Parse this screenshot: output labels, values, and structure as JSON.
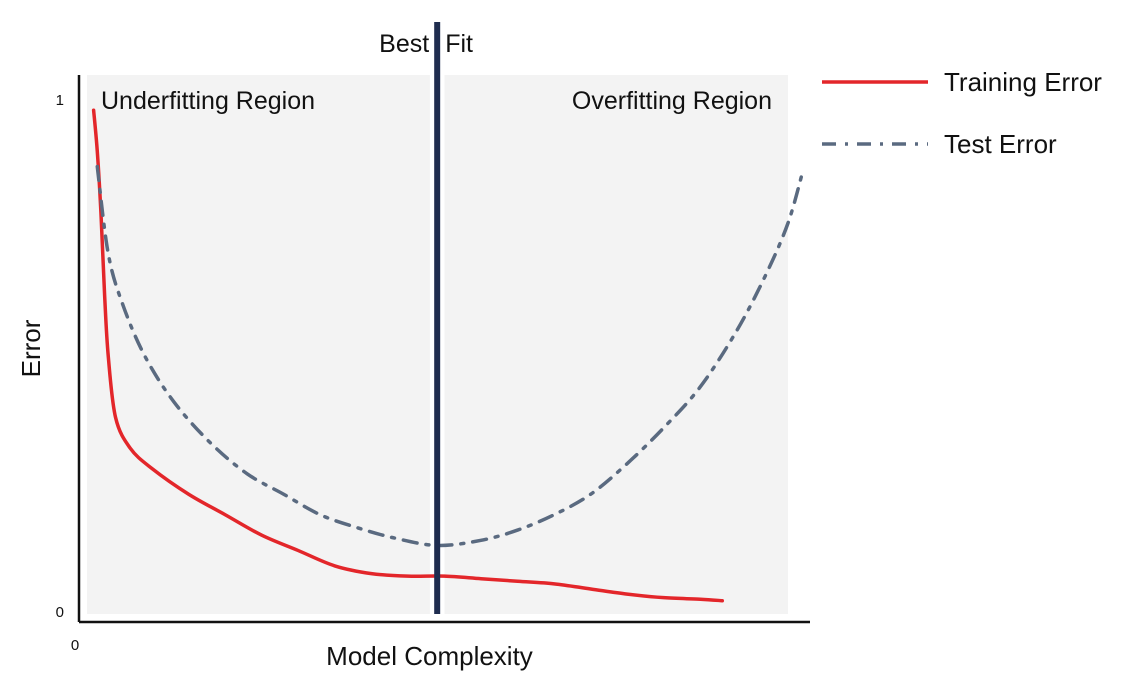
{
  "chart_data": {
    "type": "line",
    "xlabel": "Model Complexity",
    "ylabel": "Error",
    "xlim": [
      0,
      1
    ],
    "ylim": [
      0,
      1
    ],
    "x_ticks": [
      {
        "value": 0,
        "label": "0"
      }
    ],
    "y_ticks": [
      {
        "value": 0,
        "label": "0"
      },
      {
        "value": 1,
        "label": "1"
      }
    ],
    "grid": false,
    "legend_position": "top-right",
    "regions": [
      {
        "label": "Underfitting Region",
        "x_start": 0.0,
        "x_end": 0.48,
        "color": "#f3f3f3"
      },
      {
        "label": "Overfitting Region",
        "x_start": 0.5,
        "x_end": 1.0,
        "color": "#f3f3f3"
      }
    ],
    "vline": {
      "x": 0.49,
      "label_left": "Best",
      "label_right": "Fit",
      "color": "#1f2d4f"
    },
    "series": [
      {
        "name": "Training Error",
        "color": "#e3262a",
        "dash": "solid",
        "x": [
          0.02,
          0.025,
          0.03,
          0.035,
          0.04,
          0.05,
          0.07,
          0.1,
          0.15,
          0.2,
          0.25,
          0.3,
          0.35,
          0.4,
          0.45,
          0.5,
          0.55,
          0.6,
          0.65,
          0.7,
          0.75,
          0.8,
          0.85,
          0.88
        ],
        "y": [
          0.98,
          0.9,
          0.78,
          0.62,
          0.5,
          0.38,
          0.32,
          0.28,
          0.23,
          0.19,
          0.15,
          0.12,
          0.09,
          0.075,
          0.07,
          0.07,
          0.065,
          0.06,
          0.055,
          0.045,
          0.035,
          0.028,
          0.025,
          0.022
        ]
      },
      {
        "name": "Test Error",
        "color": "#5a6a80",
        "dash": "dashdot",
        "x": [
          0.025,
          0.04,
          0.06,
          0.09,
          0.13,
          0.18,
          0.23,
          0.28,
          0.33,
          0.38,
          0.43,
          0.49,
          0.55,
          0.6,
          0.65,
          0.7,
          0.75,
          0.8,
          0.85,
          0.9,
          0.94,
          0.97,
          0.99
        ],
        "y": [
          0.87,
          0.7,
          0.6,
          0.5,
          0.41,
          0.33,
          0.27,
          0.23,
          0.19,
          0.165,
          0.145,
          0.13,
          0.14,
          0.16,
          0.19,
          0.23,
          0.29,
          0.36,
          0.44,
          0.55,
          0.66,
          0.76,
          0.86
        ]
      }
    ]
  }
}
